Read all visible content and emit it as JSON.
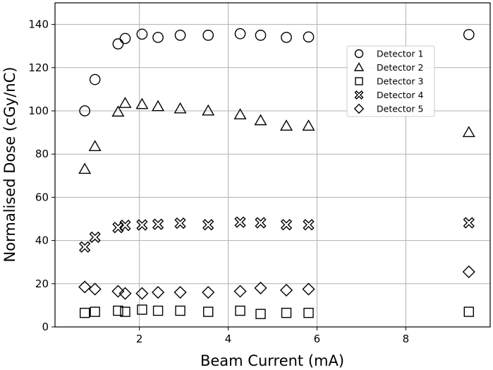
{
  "chart_data": {
    "type": "scatter",
    "title": "",
    "xlabel": "Beam Current (mA)",
    "ylabel": "Normalised Dose (cGy/nC)",
    "xlim": [
      0.1,
      9.9
    ],
    "ylim": [
      0,
      150
    ],
    "xticks": [
      2,
      4,
      6,
      8
    ],
    "yticks": [
      0,
      20,
      40,
      60,
      80,
      100,
      120,
      140
    ],
    "grid": true,
    "legend_position": "upper-right",
    "x": [
      0.77,
      1.0,
      1.52,
      1.68,
      2.06,
      2.42,
      2.92,
      3.55,
      4.27,
      4.73,
      5.31,
      5.81,
      9.42
    ],
    "series": [
      {
        "name": "Detector 1",
        "marker": "circle",
        "values": [
          100,
          114.5,
          131,
          133.5,
          135.5,
          134,
          135,
          135,
          135.7,
          135,
          134,
          134.2,
          135.3
        ]
      },
      {
        "name": "Detector 2",
        "marker": "triangle",
        "values": [
          73,
          83.5,
          99.5,
          103.5,
          103,
          102,
          101,
          100,
          98.2,
          95.5,
          93,
          93,
          90
        ]
      },
      {
        "name": "Detector 3",
        "marker": "square",
        "values": [
          6.5,
          7,
          7.5,
          7,
          8,
          7.5,
          7.5,
          7,
          7.5,
          6,
          6.5,
          6.5,
          7
        ]
      },
      {
        "name": "Detector 4",
        "marker": "x-filled",
        "values": [
          37,
          41.5,
          46,
          47,
          47.2,
          47.5,
          48,
          47.3,
          48.5,
          48.2,
          47.3,
          47.3,
          48.2
        ]
      },
      {
        "name": "Detector 5",
        "marker": "diamond",
        "values": [
          18.5,
          17.5,
          16.5,
          15.5,
          15.5,
          16,
          16,
          16,
          16.5,
          18,
          17,
          17.5,
          25.5
        ]
      }
    ]
  }
}
